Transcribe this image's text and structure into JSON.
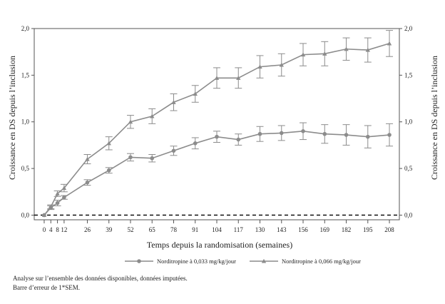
{
  "chart_data": {
    "type": "line",
    "xlabel": "Temps depuis la randomisation (semaines)",
    "ylabel_left": "Croissance en DS depuis l’inclusion",
    "ylabel_right": "Croissance en DS depuis l’inclusion",
    "x_ticks": [
      0,
      4,
      8,
      12,
      26,
      39,
      52,
      65,
      78,
      91,
      104,
      117,
      130,
      143,
      156,
      169,
      182,
      195,
      208
    ],
    "y_ticks": [
      "0,0",
      "0,5",
      "1,0",
      "1,5",
      "2,0"
    ],
    "y_tick_values": [
      0.0,
      0.5,
      1.0,
      1.5,
      2.0
    ],
    "xlim": [
      -6,
      214
    ],
    "ylim": [
      -0.05,
      2.0
    ],
    "reference_line_y": 0.0,
    "legend_position": "bottom-center",
    "x": [
      0,
      4,
      8,
      12,
      26,
      39,
      52,
      65,
      78,
      91,
      104,
      117,
      130,
      143,
      156,
      169,
      182,
      195,
      208
    ],
    "series": [
      {
        "name": "Norditropine à 0,033 mg/kg/jour",
        "marker": "circle",
        "color": "#8c8c8c",
        "values": [
          0.0,
          0.08,
          0.13,
          0.19,
          0.35,
          0.48,
          0.62,
          0.61,
          0.69,
          0.77,
          0.84,
          0.81,
          0.87,
          0.88,
          0.9,
          0.87,
          0.86,
          0.84,
          0.86
        ],
        "errors": [
          0.0,
          0.02,
          0.03,
          0.02,
          0.03,
          0.03,
          0.04,
          0.04,
          0.05,
          0.06,
          0.06,
          0.06,
          0.08,
          0.08,
          0.09,
          0.1,
          0.11,
          0.12,
          0.12
        ]
      },
      {
        "name": "Norditropine à 0,066 mg/kg/jour",
        "marker": "triangle",
        "color": "#8c8c8c",
        "values": [
          0.0,
          0.09,
          0.23,
          0.29,
          0.6,
          0.77,
          1.0,
          1.06,
          1.21,
          1.3,
          1.47,
          1.47,
          1.59,
          1.61,
          1.72,
          1.73,
          1.78,
          1.77,
          1.84
        ],
        "errors": [
          0.0,
          0.02,
          0.03,
          0.04,
          0.05,
          0.07,
          0.07,
          0.08,
          0.09,
          0.09,
          0.11,
          0.11,
          0.12,
          0.12,
          0.12,
          0.13,
          0.12,
          0.13,
          0.14
        ]
      }
    ]
  },
  "footnotes": [
    "Analyse sur l’ensemble des données disponibles, données imputées.",
    "Barre d’erreur de 1*SEM."
  ]
}
